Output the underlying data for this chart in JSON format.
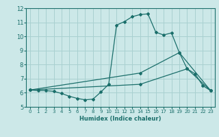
{
  "xlabel": "Humidex (Indice chaleur)",
  "bg_color": "#cce8e8",
  "grid_color": "#a8d0d0",
  "line_color": "#1a6e6a",
  "spine_color": "#1a6e6a",
  "xlim": [
    -0.5,
    23.5
  ],
  "ylim": [
    5,
    12
  ],
  "yticks": [
    5,
    6,
    7,
    8,
    9,
    10,
    11,
    12
  ],
  "xticks": [
    0,
    1,
    2,
    3,
    4,
    5,
    6,
    7,
    8,
    9,
    10,
    11,
    12,
    13,
    14,
    15,
    16,
    17,
    18,
    19,
    20,
    21,
    22,
    23
  ],
  "line1_x": [
    0,
    1,
    2,
    3,
    4,
    5,
    6,
    7,
    8,
    9,
    10,
    11,
    12,
    13,
    14,
    15,
    16,
    17,
    18,
    19,
    20,
    21,
    22,
    23
  ],
  "line1_y": [
    6.2,
    6.15,
    6.15,
    6.1,
    5.95,
    5.75,
    5.6,
    5.5,
    5.55,
    6.05,
    6.6,
    10.8,
    11.05,
    11.4,
    11.55,
    11.6,
    10.3,
    10.1,
    10.25,
    8.85,
    7.7,
    7.35,
    6.5,
    6.15
  ],
  "line2_x": [
    0,
    14,
    19,
    23
  ],
  "line2_y": [
    6.2,
    7.4,
    8.85,
    6.15
  ],
  "line3_x": [
    0,
    14,
    20,
    23
  ],
  "line3_y": [
    6.2,
    6.6,
    7.7,
    6.15
  ]
}
